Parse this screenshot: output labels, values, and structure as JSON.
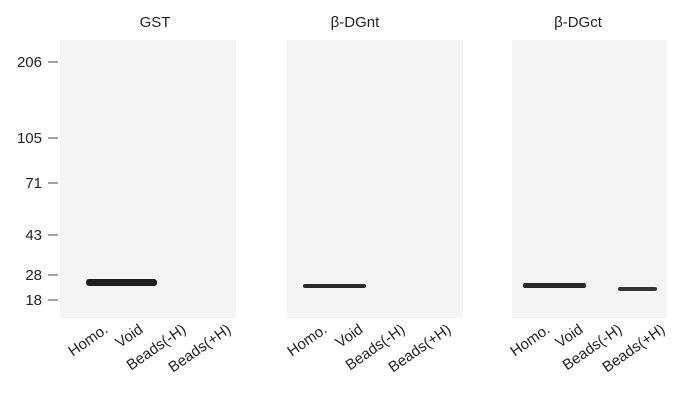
{
  "markers": [
    "206",
    "105",
    "71",
    "43",
    "28",
    "18"
  ],
  "panels": [
    {
      "title": "GST",
      "lanes": [
        "Homo.",
        "Void",
        "Beads(-H)",
        "Beads(+H)"
      ]
    },
    {
      "title": "β-DGnt",
      "lanes": [
        "Homo.",
        "Void",
        "Beads(-H)",
        "Beads(+H)"
      ]
    },
    {
      "title": "β-DGct",
      "lanes": [
        "Homo.",
        "Void",
        "Beads(-H)",
        "Beads(+H)"
      ]
    }
  ]
}
